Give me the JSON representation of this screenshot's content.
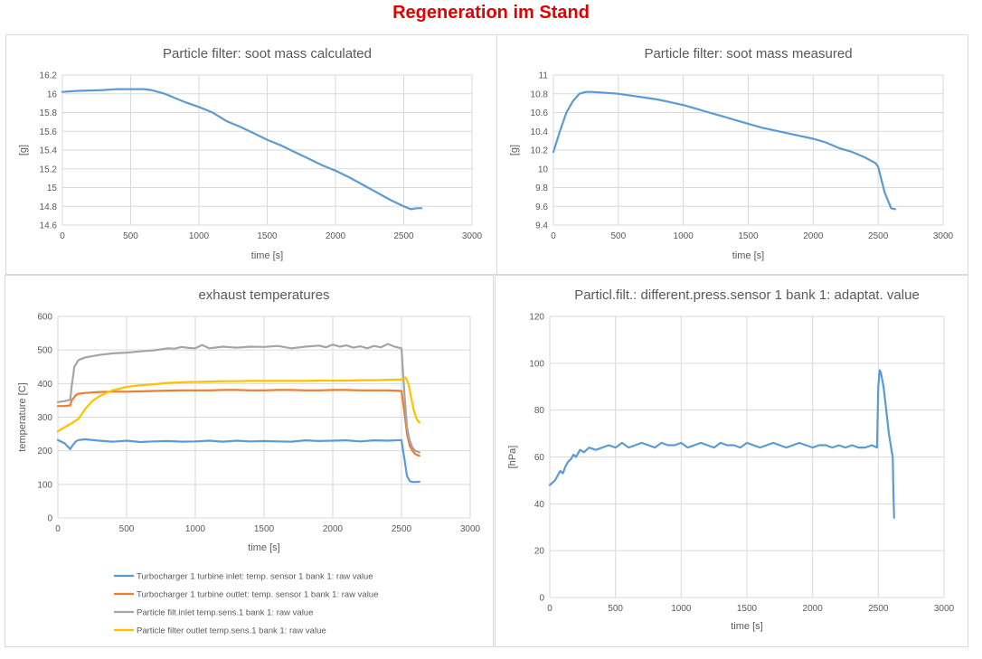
{
  "page_title": "Regeneration im Stand",
  "chart_data": [
    {
      "id": "soot_calc",
      "type": "line",
      "title": "Particle filter: soot mass calculated",
      "xlabel": "time [s]",
      "ylabel": "[g]",
      "xlim": [
        0,
        3000
      ],
      "ylim": [
        14.6,
        16.2
      ],
      "xticks": [
        0,
        500,
        1000,
        1500,
        2000,
        2500,
        3000
      ],
      "yticks": [
        14.6,
        14.8,
        15,
        15.2,
        15.4,
        15.6,
        15.8,
        16,
        16.2
      ],
      "grid": true,
      "series": [
        {
          "color": "#5b9bd5",
          "x": [
            0,
            100,
            200,
            300,
            400,
            500,
            600,
            650,
            700,
            750,
            800,
            900,
            1000,
            1100,
            1200,
            1300,
            1400,
            1500,
            1600,
            1700,
            1800,
            1900,
            2000,
            2100,
            2200,
            2300,
            2400,
            2500,
            2550,
            2600,
            2630
          ],
          "y": [
            16.02,
            16.03,
            16.035,
            16.04,
            16.05,
            16.05,
            16.05,
            16.04,
            16.02,
            16.0,
            15.97,
            15.91,
            15.86,
            15.8,
            15.71,
            15.65,
            15.58,
            15.51,
            15.45,
            15.38,
            15.31,
            15.24,
            15.18,
            15.11,
            15.03,
            14.95,
            14.87,
            14.8,
            14.77,
            14.78,
            14.78
          ]
        }
      ]
    },
    {
      "id": "soot_meas",
      "type": "line",
      "title": "Particle filter: soot mass measured",
      "xlabel": "time [s]",
      "ylabel": "[g]",
      "xlim": [
        0,
        3000
      ],
      "ylim": [
        9.4,
        11
      ],
      "xticks": [
        0,
        500,
        1000,
        1500,
        2000,
        2500,
        3000
      ],
      "yticks": [
        9.4,
        9.6,
        9.8,
        10,
        10.2,
        10.4,
        10.6,
        10.8,
        11
      ],
      "grid": true,
      "series": [
        {
          "color": "#5b9bd5",
          "x": [
            0,
            50,
            100,
            150,
            200,
            250,
            300,
            400,
            500,
            600,
            700,
            800,
            900,
            1000,
            1100,
            1200,
            1300,
            1400,
            1500,
            1600,
            1700,
            1800,
            1900,
            2000,
            2100,
            2200,
            2300,
            2400,
            2480,
            2500,
            2550,
            2600,
            2630
          ],
          "y": [
            10.18,
            10.4,
            10.6,
            10.72,
            10.8,
            10.82,
            10.82,
            10.81,
            10.8,
            10.78,
            10.76,
            10.74,
            10.71,
            10.68,
            10.64,
            10.6,
            10.56,
            10.52,
            10.48,
            10.44,
            10.41,
            10.38,
            10.35,
            10.32,
            10.28,
            10.22,
            10.18,
            10.12,
            10.06,
            10.02,
            9.75,
            9.58,
            9.57
          ]
        }
      ]
    },
    {
      "id": "exhaust",
      "type": "line",
      "title": "exhaust temperatures",
      "xlabel": "time [s]",
      "ylabel": "temperature [C]",
      "xlim": [
        0,
        3000
      ],
      "ylim": [
        0,
        600
      ],
      "xticks": [
        0,
        500,
        1000,
        1500,
        2000,
        2500,
        3000
      ],
      "yticks": [
        0,
        100,
        200,
        300,
        400,
        500,
        600
      ],
      "grid": true,
      "legend_position": "bottom",
      "series": [
        {
          "name": "Turbocharger 1 turbine inlet: temp. sensor 1 bank 1: raw value",
          "color": "#5b9bd5",
          "x": [
            0,
            50,
            90,
            100,
            130,
            150,
            200,
            300,
            400,
            500,
            600,
            700,
            800,
            900,
            1000,
            1100,
            1200,
            1300,
            1400,
            1500,
            1600,
            1700,
            1800,
            1900,
            2000,
            2100,
            2200,
            2300,
            2400,
            2500,
            2520,
            2540,
            2560,
            2580,
            2600,
            2630
          ],
          "y": [
            232,
            222,
            205,
            212,
            228,
            232,
            234,
            230,
            227,
            230,
            226,
            228,
            229,
            227,
            228,
            230,
            227,
            230,
            228,
            229,
            228,
            227,
            231,
            229,
            230,
            231,
            228,
            231,
            230,
            232,
            180,
            125,
            110,
            107,
            107,
            108
          ]
        },
        {
          "name": "Turbocharger 1 turbine outlet: temp. sensor 1 bank 1: raw value",
          "color": "#ed7d31",
          "x": [
            0,
            50,
            90,
            100,
            130,
            150,
            200,
            300,
            400,
            500,
            600,
            700,
            800,
            900,
            1000,
            1100,
            1200,
            1300,
            1400,
            1500,
            1600,
            1700,
            1800,
            1900,
            2000,
            2100,
            2200,
            2300,
            2400,
            2500,
            2520,
            2540,
            2560,
            2580,
            2600,
            2630
          ],
          "y": [
            333,
            333,
            335,
            350,
            365,
            370,
            372,
            375,
            376,
            376,
            377,
            378,
            379,
            380,
            380,
            380,
            381,
            381,
            380,
            380,
            381,
            381,
            380,
            380,
            381,
            381,
            380,
            380,
            380,
            378,
            320,
            250,
            215,
            200,
            190,
            185
          ]
        },
        {
          "name": "Particle filt.inlet temp.sens.1 bank 1: raw value",
          "color": "#a5a5a5",
          "x": [
            0,
            50,
            90,
            100,
            120,
            150,
            200,
            300,
            400,
            500,
            600,
            700,
            800,
            850,
            900,
            950,
            1000,
            1050,
            1100,
            1200,
            1300,
            1400,
            1500,
            1600,
            1700,
            1800,
            1900,
            1950,
            2000,
            2050,
            2100,
            2150,
            2200,
            2250,
            2300,
            2350,
            2400,
            2450,
            2500,
            2520,
            2540,
            2560,
            2580,
            2600,
            2630
          ],
          "y": [
            345,
            348,
            352,
            390,
            450,
            470,
            478,
            485,
            490,
            492,
            496,
            499,
            505,
            504,
            509,
            506,
            505,
            515,
            505,
            510,
            507,
            510,
            509,
            512,
            505,
            510,
            513,
            508,
            516,
            510,
            514,
            507,
            511,
            505,
            512,
            508,
            518,
            510,
            505,
            380,
            270,
            230,
            210,
            200,
            195
          ]
        },
        {
          "name": "Particle filter outlet temp.sens.1 bank 1: raw value",
          "color": "#ffc000",
          "x": [
            0,
            50,
            100,
            150,
            200,
            250,
            300,
            350,
            400,
            500,
            600,
            700,
            800,
            900,
            1000,
            1100,
            1200,
            1300,
            1400,
            1500,
            1600,
            1700,
            1800,
            1900,
            2000,
            2100,
            2200,
            2300,
            2400,
            2500,
            2530,
            2550,
            2570,
            2590,
            2610,
            2630
          ],
          "y": [
            258,
            270,
            282,
            295,
            325,
            348,
            362,
            372,
            380,
            390,
            395,
            398,
            402,
            404,
            405,
            406,
            407,
            407,
            408,
            408,
            408,
            408,
            408,
            409,
            409,
            409,
            410,
            410,
            411,
            412,
            418,
            400,
            360,
            320,
            295,
            284
          ]
        }
      ]
    },
    {
      "id": "press",
      "type": "line",
      "title": "Particl.filt.: different.press.sensor 1 bank 1: adaptat. value",
      "xlabel": "time [s]",
      "ylabel": "[hPa]",
      "xlim": [
        0,
        3000
      ],
      "ylim": [
        0,
        120
      ],
      "xticks": [
        0,
        500,
        1000,
        1500,
        2000,
        2500,
        3000
      ],
      "yticks": [
        0,
        20,
        40,
        60,
        80,
        100,
        120
      ],
      "grid": true,
      "series": [
        {
          "color": "#5b9bd5",
          "x": [
            0,
            20,
            40,
            60,
            80,
            100,
            120,
            140,
            160,
            180,
            200,
            230,
            260,
            300,
            350,
            400,
            450,
            500,
            550,
            600,
            650,
            700,
            750,
            800,
            850,
            900,
            950,
            1000,
            1050,
            1100,
            1150,
            1200,
            1250,
            1300,
            1350,
            1400,
            1450,
            1500,
            1550,
            1600,
            1650,
            1700,
            1750,
            1800,
            1850,
            1900,
            1950,
            2000,
            2050,
            2100,
            2150,
            2200,
            2250,
            2300,
            2350,
            2400,
            2450,
            2490,
            2500,
            2510,
            2520,
            2540,
            2560,
            2580,
            2600,
            2610,
            2615,
            2620
          ],
          "y": [
            48,
            49,
            50,
            52,
            54,
            53,
            56,
            58,
            59,
            61,
            60,
            63,
            62,
            64,
            63,
            64,
            65,
            64,
            66,
            64,
            65,
            66,
            65,
            64,
            66,
            65,
            65,
            66,
            64,
            65,
            66,
            65,
            64,
            66,
            65,
            65,
            64,
            66,
            65,
            64,
            65,
            66,
            65,
            64,
            65,
            66,
            65,
            64,
            65,
            65,
            64,
            65,
            64,
            65,
            64,
            64,
            65,
            64,
            90,
            97,
            96,
            90,
            80,
            70,
            63,
            60,
            45,
            34
          ]
        }
      ]
    }
  ]
}
